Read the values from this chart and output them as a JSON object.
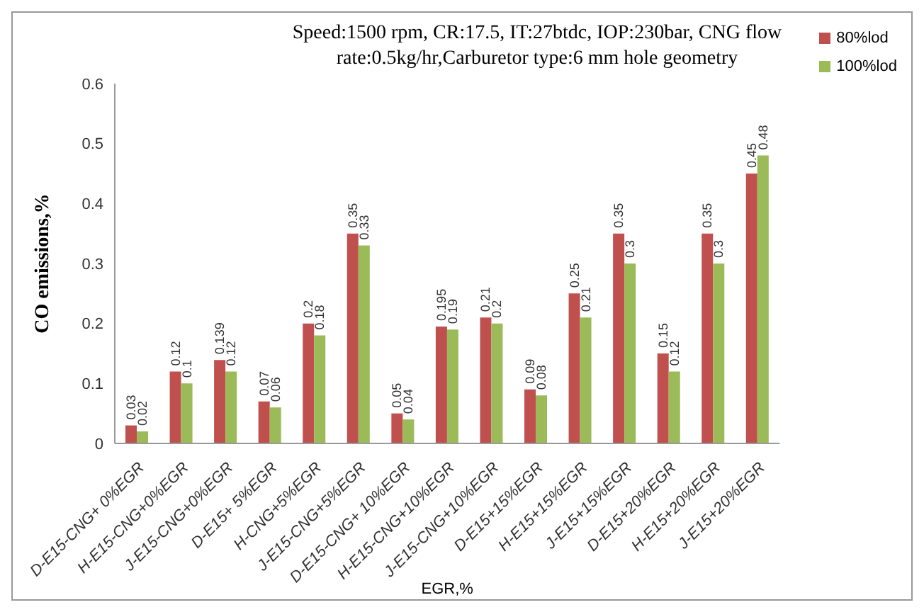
{
  "chart_data": {
    "type": "bar",
    "title": "Speed:1500 rpm, CR:17.5, IT:27btdc, IOP:230bar, CNG flow  rate:0.5kg/hr,Carburetor type:6 mm hole geometry",
    "xlabel": "EGR,%",
    "ylabel": "CO emissions,%",
    "categories": [
      "D-E15-CNG+ 0%EGR",
      "H-E15-CNG+0%EGR",
      "J-E15-CNG+0%EGR",
      "D-E15+ 5%EGR",
      "H-CNG+5%EGR",
      "J-E15-CNG+5%EGR",
      "D-E15-CNG+ 10%EGR",
      "H-E15-CNG+10%EGR",
      "J-E15-CNG+10%EGR",
      "D-E15+15%EGR",
      "H-E15+15%EGR",
      "J-E15+15%EGR",
      "D-E15+20%EGR",
      "H-E15+20%EGR",
      "J-E15+20%EGR"
    ],
    "series": [
      {
        "name": "80%lod",
        "color": "#c0504d",
        "values": [
          0.03,
          0.12,
          0.139,
          0.07,
          0.2,
          0.35,
          0.05,
          0.195,
          0.21,
          0.09,
          0.25,
          0.35,
          0.15,
          0.35,
          0.45
        ]
      },
      {
        "name": "100%lod",
        "color": "#9bbb59",
        "values": [
          0.02,
          0.1,
          0.12,
          0.06,
          0.18,
          0.33,
          0.04,
          0.19,
          0.2,
          0.08,
          0.21,
          0.3,
          0.12,
          0.3,
          0.48
        ]
      }
    ],
    "ylim": [
      0,
      0.6
    ],
    "yticks": [
      0,
      0.1,
      0.2,
      0.3,
      0.4,
      0.5,
      0.6
    ],
    "grid": false,
    "legend": "top right",
    "data_labels": true
  }
}
